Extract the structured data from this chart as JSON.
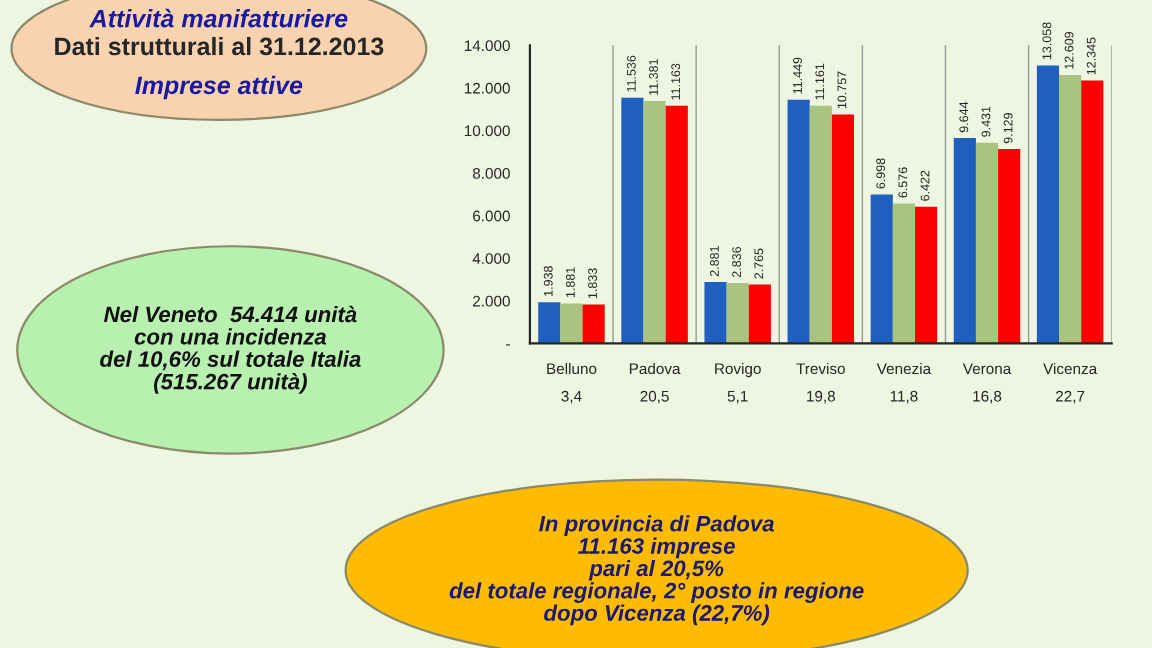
{
  "chart_data": {
    "type": "bar",
    "title": "Attività manifatturiere",
    "subtitle": "Dati strutturali al 31.12.2013",
    "categories": [
      "Belluno\n3,4",
      "Padova\n20,5",
      "Rovigo\n5,1",
      "Treviso\n19,8",
      "Venezia\n11,8",
      "Verona\n16,8",
      "Vicenza\n22,7"
    ],
    "series": [
      {
        "color": "#1f5fbf",
        "values": [
          1938,
          11536,
          2881,
          11449,
          6998,
          9644,
          13058
        ],
        "value_labels": [
          "1.938",
          "11.536",
          "2.881",
          "11.449",
          "6.998",
          "9.644",
          "13.058"
        ]
      },
      {
        "color": "#a9c47f",
        "values": [
          1881,
          11381,
          2836,
          11161,
          6576,
          9431,
          12609
        ],
        "value_labels": [
          "1.881",
          "11.381",
          "2.836",
          "11.161",
          "6.576",
          "9.431",
          "12.609"
        ]
      },
      {
        "color": "#ff0000",
        "values": [
          1833,
          11163,
          2765,
          10757,
          6422,
          9129,
          12345
        ],
        "value_labels": [
          "1.833",
          "11.163",
          "2.765",
          "10.757",
          "6.422",
          "9.129",
          "12.345"
        ]
      }
    ],
    "ylim": [
      0,
      14000
    ],
    "yticks": [
      {
        "value": 0,
        "label": "-"
      },
      {
        "value": 2000,
        "label": "2.000"
      },
      {
        "value": 4000,
        "label": "4.000"
      },
      {
        "value": 6000,
        "label": "6.000"
      },
      {
        "value": 8000,
        "label": "8.000"
      },
      {
        "value": 10000,
        "label": "10.000"
      },
      {
        "value": 12000,
        "label": "12.000"
      },
      {
        "value": 14000,
        "label": "14.000"
      }
    ],
    "grid": false,
    "legend": false,
    "annotations": [
      "Imprese attive",
      "Nel Veneto  54.414 unità\ncon una incidenza\ndel 10,6% sul totale Italia\n(515.267 unità)",
      "In provincia di Padova\n11.163 imprese\npari al 20,5%\ndel totale regionale, 2° posto in regione\ndopo Vicenza (22,7%)"
    ]
  }
}
